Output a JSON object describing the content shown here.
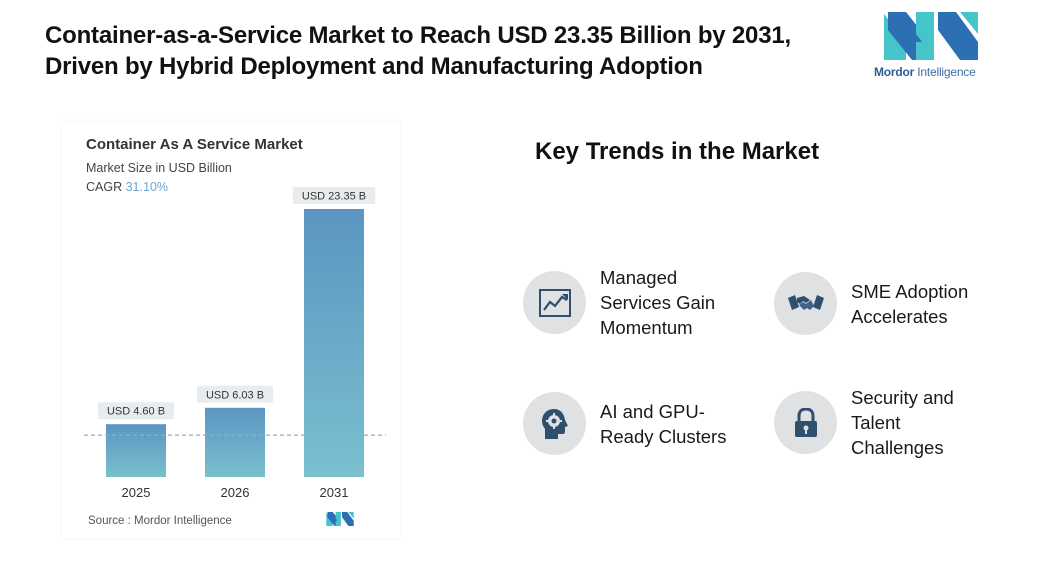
{
  "headline": {
    "line1": "Container-as-a-Service Market to Reach USD 23.35 Billion by 2031,",
    "line2": "Driven by Hybrid Deployment and Manufacturing Adoption"
  },
  "brand": {
    "name_bold": "Mordor",
    "name_rest": " Intelligence",
    "colors": {
      "teal": "#45c4c9",
      "blue": "#2c6fb3"
    }
  },
  "chart_data": {
    "type": "bar",
    "title": "Container As A Service Market",
    "subtitle": "Market Size in USD Billion",
    "cagr_label": "CAGR",
    "cagr_value": "31.10%",
    "categories": [
      "2025",
      "2026",
      "2031"
    ],
    "values": [
      4.6,
      6.03,
      23.35
    ],
    "data_labels": [
      "USD 4.60 B",
      "USD 6.03 B",
      "USD 23.35 B"
    ],
    "ylim": [
      0,
      23.35
    ],
    "grid": false,
    "reference_line": {
      "value": 3.65,
      "style": "dashed"
    },
    "bar_color_top": "#5b95c1",
    "bar_color_bottom": "#7ac0cf",
    "source": "Source :  Mordor Intelligence"
  },
  "trends": {
    "title": "Key Trends in the Market",
    "items": [
      {
        "label_lines": [
          "Managed",
          "Services Gain",
          "Momentum"
        ],
        "icon": "line-chart-icon"
      },
      {
        "label_lines": [
          "SME Adoption",
          "Accelerates"
        ],
        "icon": "handshake-icon"
      },
      {
        "label_lines": [
          "AI and GPU-",
          "Ready Clusters"
        ],
        "icon": "head-gear-icon"
      },
      {
        "label_lines": [
          "Security and",
          "Talent",
          "Challenges"
        ],
        "icon": "padlock-icon"
      }
    ]
  }
}
